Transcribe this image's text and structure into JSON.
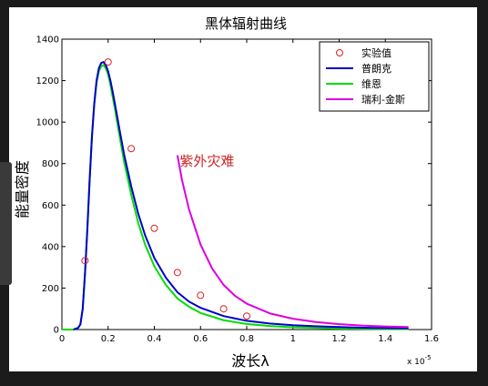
{
  "chart_data": {
    "type": "line",
    "title": "黑体辐射曲线",
    "xlabel": "波长λ",
    "ylabel": "能量密度",
    "x_exponent": "x 10",
    "x_exponent_power": "-5",
    "xlim": [
      0,
      1.6
    ],
    "ylim": [
      0,
      1400
    ],
    "xticks": [
      0,
      0.2,
      0.4,
      0.6,
      0.8,
      1,
      1.2,
      1.4,
      1.6
    ],
    "yticks": [
      0,
      200,
      400,
      600,
      800,
      1000,
      1200,
      1400
    ],
    "legend_position": "top-right",
    "annotation": {
      "text": "紫外灾难",
      "x": 0.51,
      "y": 790,
      "color": "#cc2222"
    },
    "series": [
      {
        "name": "实验值",
        "kind": "scatter",
        "color": "#dd2222",
        "marker": "circle",
        "x": [
          0.1,
          0.2,
          0.3,
          0.4,
          0.5,
          0.6,
          0.7,
          0.8
        ],
        "y": [
          332,
          1290,
          872,
          488,
          275,
          165,
          100,
          65
        ]
      },
      {
        "name": "普朗克",
        "kind": "line",
        "color": "#0000cc",
        "x": [
          0.05,
          0.07,
          0.08,
          0.09,
          0.1,
          0.11,
          0.12,
          0.13,
          0.14,
          0.15,
          0.16,
          0.17,
          0.18,
          0.19,
          0.2,
          0.21,
          0.22,
          0.23,
          0.25,
          0.27,
          0.3,
          0.33,
          0.36,
          0.4,
          0.45,
          0.5,
          0.55,
          0.6,
          0.7,
          0.8,
          0.9,
          1.0,
          1.1,
          1.2,
          1.3,
          1.4,
          1.5
        ],
        "y": [
          0,
          8,
          25,
          100,
          270,
          480,
          720,
          930,
          1090,
          1200,
          1260,
          1285,
          1290,
          1275,
          1245,
          1200,
          1145,
          1085,
          960,
          840,
          690,
          560,
          455,
          345,
          250,
          180,
          135,
          105,
          65,
          42,
          29,
          21,
          16,
          12,
          9,
          7,
          6
        ]
      },
      {
        "name": "维恩",
        "kind": "line",
        "color": "#00dd00",
        "x": [
          0.0,
          0.05,
          0.07,
          0.08,
          0.09,
          0.1,
          0.11,
          0.12,
          0.13,
          0.14,
          0.15,
          0.16,
          0.17,
          0.18,
          0.19,
          0.2,
          0.21,
          0.22,
          0.23,
          0.25,
          0.27,
          0.3,
          0.33,
          0.36,
          0.4,
          0.45,
          0.5,
          0.55,
          0.6,
          0.7,
          0.8,
          0.9,
          1.0,
          1.1,
          1.2,
          1.3,
          1.4,
          1.5
        ],
        "y": [
          0,
          0,
          8,
          25,
          100,
          275,
          485,
          725,
          930,
          1085,
          1190,
          1245,
          1270,
          1275,
          1260,
          1230,
          1180,
          1120,
          1060,
          930,
          805,
          650,
          515,
          410,
          305,
          215,
          150,
          110,
          80,
          45,
          27,
          17,
          11,
          8,
          5,
          4,
          3,
          2
        ]
      },
      {
        "name": "瑞利-金斯",
        "kind": "line",
        "color": "#dd00dd",
        "x": [
          0.5,
          0.52,
          0.55,
          0.6,
          0.65,
          0.7,
          0.75,
          0.8,
          0.9,
          1.0,
          1.1,
          1.2,
          1.3,
          1.4,
          1.5
        ],
        "y": [
          840,
          720,
          580,
          410,
          295,
          215,
          162,
          125,
          78,
          52,
          36,
          26,
          19,
          15,
          12
        ]
      }
    ]
  }
}
